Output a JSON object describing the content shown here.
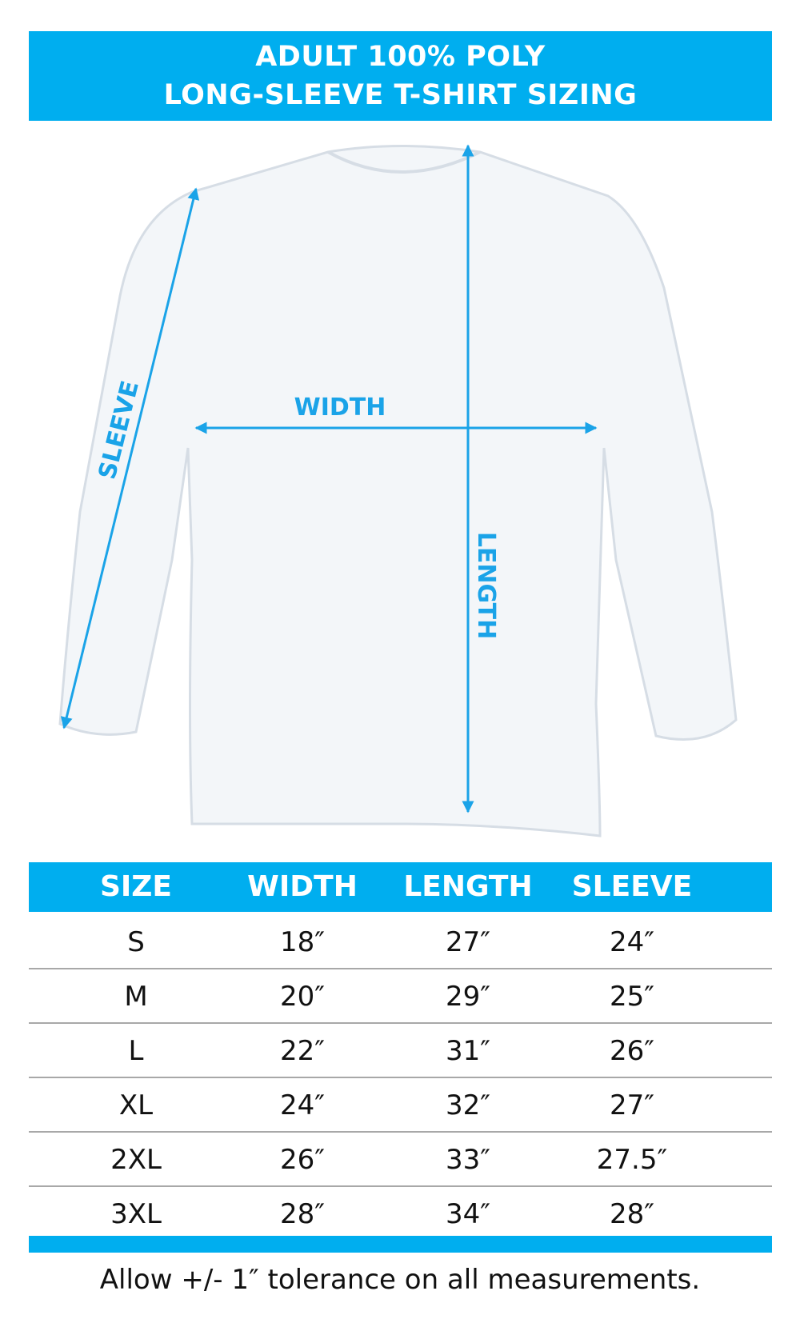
{
  "title": {
    "line1": "ADULT 100% POLY",
    "line2": "LONG-SLEEVE T-SHIRT SIZING"
  },
  "diagram": {
    "width_label": "WIDTH",
    "length_label": "LENGTH",
    "sleeve_label": "SLEEVE"
  },
  "accent_color": "#00aeef",
  "table": {
    "headers": [
      "SIZE",
      "WIDTH",
      "LENGTH",
      "SLEEVE"
    ],
    "rows": [
      [
        "S",
        "18″",
        "27″",
        "24″"
      ],
      [
        "M",
        "20″",
        "29″",
        "25″"
      ],
      [
        "L",
        "22″",
        "31″",
        "26″"
      ],
      [
        "XL",
        "24″",
        "32″",
        "27″"
      ],
      [
        "2XL",
        "26″",
        "33″",
        "27.5″"
      ],
      [
        "3XL",
        "28″",
        "34″",
        "28″"
      ]
    ]
  },
  "footer": "Allow +/- 1″ tolerance on all measurements."
}
